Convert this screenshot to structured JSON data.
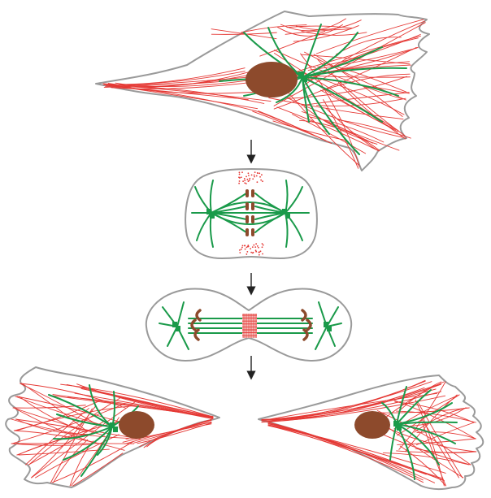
{
  "colors": {
    "membrane": "#9a9a9a",
    "actin": "#e53935",
    "microtubule": "#1a9a4a",
    "nucleus": "#8d4a2c",
    "centrosome": "#1a9a4a",
    "arrow": "#222222"
  },
  "stages": [
    {
      "name": "interphase-cell"
    },
    {
      "name": "metaphase-cell"
    },
    {
      "name": "anaphase-cytokinesis-cell"
    },
    {
      "name": "daughter-cells"
    }
  ]
}
